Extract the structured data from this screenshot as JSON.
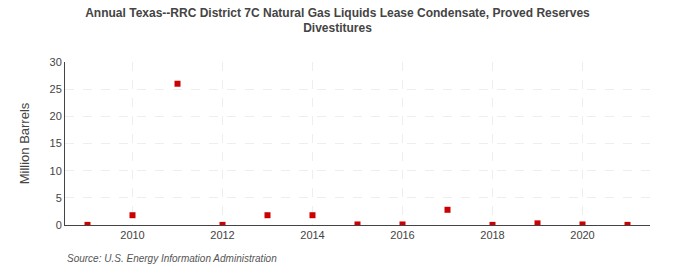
{
  "chart_data": {
    "type": "scatter",
    "title": "Annual Texas--RRC District 7C Natural Gas Liquids Lease Condensate, Proved Reserves\nDivestitures",
    "y_label": "Million Barrels",
    "annotations": [
      "Source: U.S. Energy Information Administration"
    ],
    "x": [
      2009,
      2010,
      2011,
      2012,
      2013,
      2014,
      2015,
      2016,
      2017,
      2018,
      2019,
      2020,
      2021
    ],
    "values": [
      0.02,
      1.8,
      26.0,
      0.02,
      1.8,
      1.8,
      0.1,
      0.1,
      2.8,
      0.02,
      0.3,
      0.1,
      0.02
    ],
    "color": "#cc0000",
    "marker": "square",
    "xlim": [
      2008.5,
      2021.5
    ],
    "xticks": [
      2010,
      2012,
      2014,
      2016,
      2018,
      2020
    ],
    "ylim": [
      0,
      30
    ],
    "yticks": [
      0,
      5,
      10,
      15,
      20,
      25,
      30
    ],
    "grid": true
  }
}
